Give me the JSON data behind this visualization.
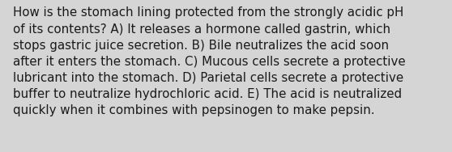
{
  "lines": [
    "How is the stomach lining protected from the strongly acidic pH",
    "of its contents? A) It releases a hormone called gastrin, which",
    "stops gastric juice secretion. B) Bile neutralizes the acid soon",
    "after it enters the stomach. C) Mucous cells secrete a protective",
    "lubricant into the stomach. D) Parietal cells secrete a protective",
    "buffer to neutralize hydrochloric acid. E) The acid is neutralized",
    "quickly when it combines with pepsinogen to make pepsin."
  ],
  "background_color": "#d5d5d5",
  "text_color": "#1a1a1a",
  "font_size": 10.8,
  "fig_width": 5.58,
  "fig_height": 1.88,
  "linespacing": 1.42
}
